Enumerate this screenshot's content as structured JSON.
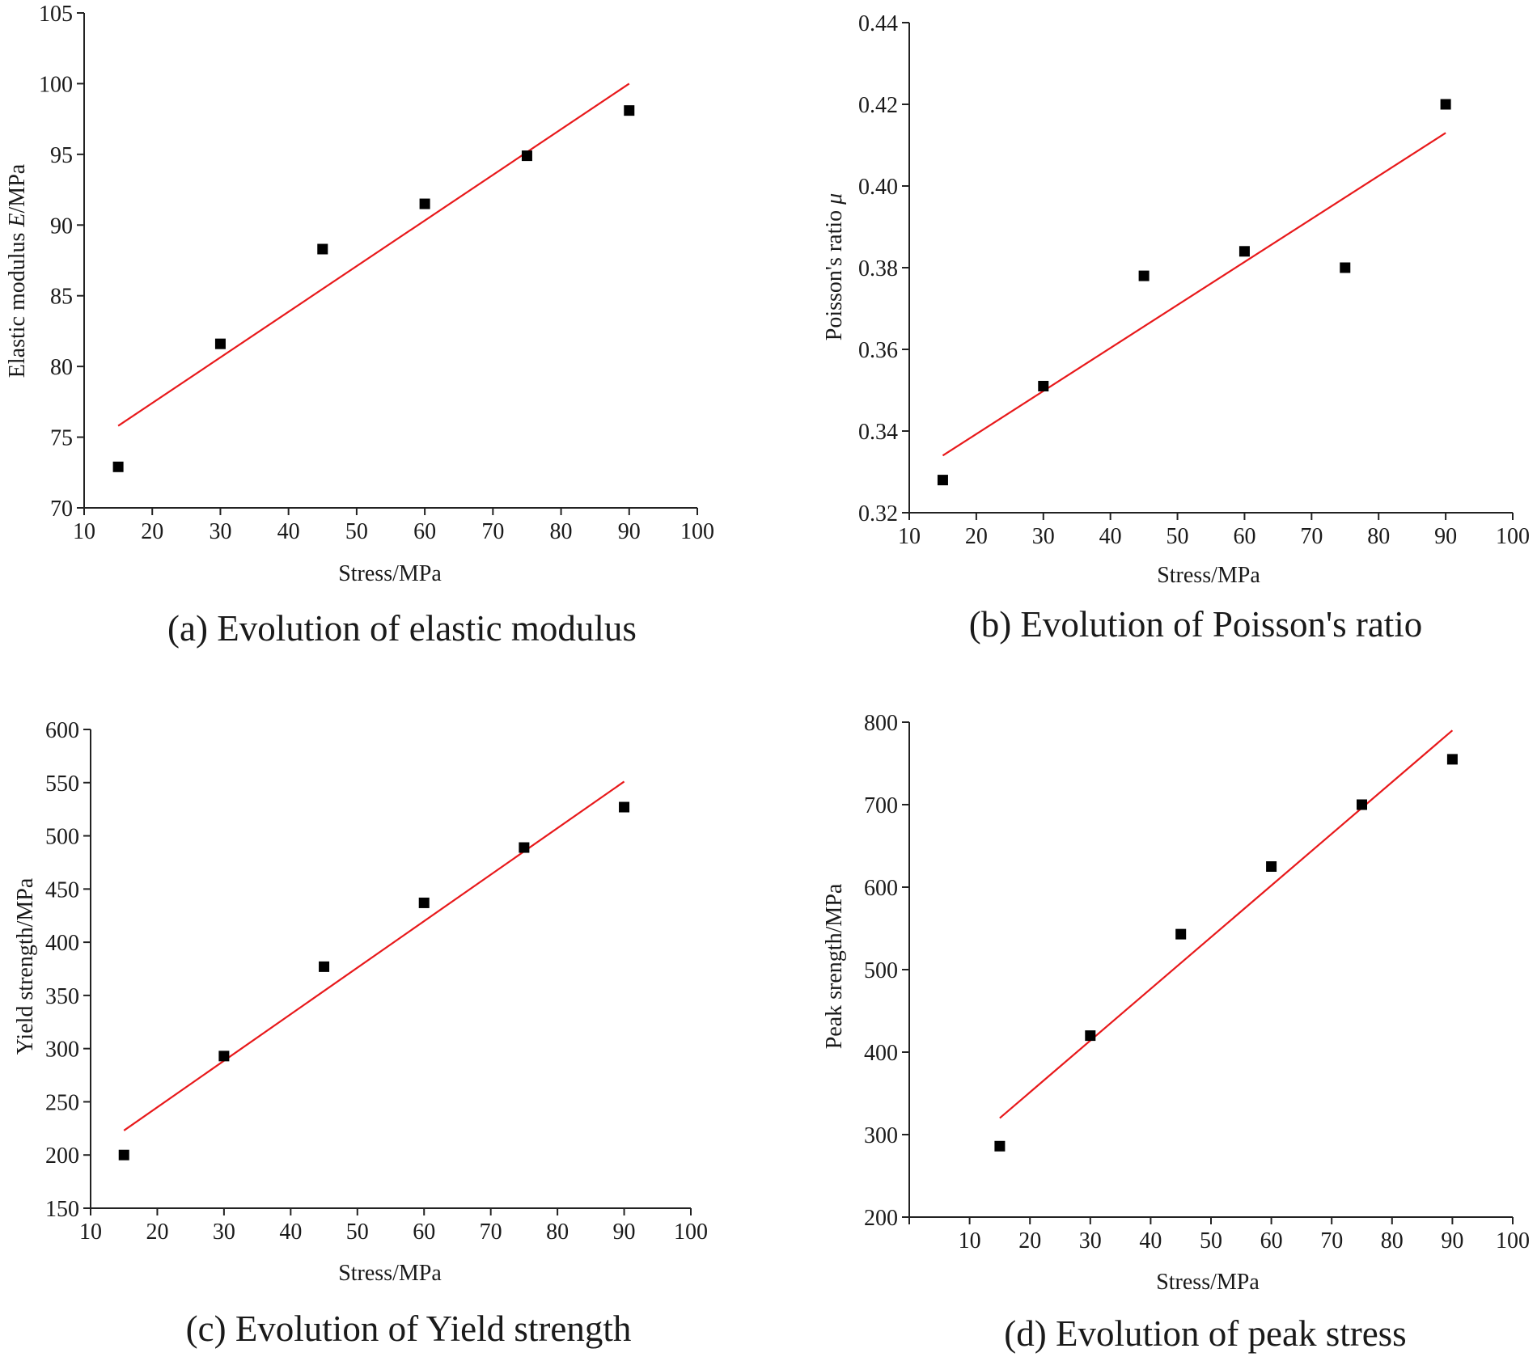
{
  "chart_data": [
    {
      "type": "scatter",
      "id": "a",
      "caption": "(a) Evolution of elastic modulus",
      "xlabel": "Stress/MPa",
      "ylabel": "Elastic modulus E/MPa",
      "ylabel_parts": [
        "Elastic modulus ",
        "E",
        "/MPa"
      ],
      "xlim": [
        10,
        100
      ],
      "ylim": [
        70,
        105
      ],
      "xticks": [
        "10",
        "20",
        "30",
        "40",
        "50",
        "60",
        "70",
        "80",
        "90",
        "100"
      ],
      "yticks": [
        "70",
        "75",
        "80",
        "85",
        "90",
        "95",
        "100",
        "105"
      ],
      "x": [
        15,
        30,
        45,
        60,
        75,
        90
      ],
      "y": [
        72.9,
        81.6,
        88.3,
        91.5,
        94.9,
        98.1
      ],
      "fit": {
        "x": [
          15,
          90
        ],
        "y": [
          75.8,
          100.0
        ]
      },
      "marker_color": "#000000",
      "fit_color": "#e8191b"
    },
    {
      "type": "scatter",
      "id": "b",
      "caption": "(b) Evolution of Poisson's ratio",
      "xlabel": "Stress/MPa",
      "ylabel": "Poisson's ratio μ",
      "ylabel_parts": [
        "Poisson's ratio ",
        "μ",
        ""
      ],
      "xlim": [
        10,
        100
      ],
      "ylim": [
        0.32,
        0.44
      ],
      "xticks": [
        "10",
        "20",
        "30",
        "40",
        "50",
        "60",
        "70",
        "80",
        "90",
        "100"
      ],
      "yticks": [
        "0.32",
        "0.34",
        "0.36",
        "0.38",
        "0.40",
        "0.42",
        "0.44"
      ],
      "x": [
        15,
        30,
        45,
        60,
        75,
        90
      ],
      "y": [
        0.328,
        0.351,
        0.378,
        0.384,
        0.38,
        0.42
      ],
      "fit": {
        "x": [
          15,
          90
        ],
        "y": [
          0.334,
          0.413
        ]
      },
      "marker_color": "#000000",
      "fit_color": "#e8191b"
    },
    {
      "type": "scatter",
      "id": "c",
      "caption": "(c) Evolution of Yield strength",
      "xlabel": "Stress/MPa",
      "ylabel": "Yield strength/MPa",
      "ylabel_parts": [
        "Yield strength/MPa",
        "",
        ""
      ],
      "xlim": [
        10,
        100
      ],
      "ylim": [
        150,
        600
      ],
      "xticks": [
        "10",
        "20",
        "30",
        "40",
        "50",
        "60",
        "70",
        "80",
        "90",
        "100"
      ],
      "yticks": [
        "150",
        "200",
        "250",
        "300",
        "350",
        "400",
        "450",
        "500",
        "550",
        "600"
      ],
      "x": [
        15,
        30,
        45,
        60,
        75,
        90
      ],
      "y": [
        200,
        293,
        377,
        437,
        489,
        527
      ],
      "fit": {
        "x": [
          15,
          90
        ],
        "y": [
          223,
          551
        ]
      },
      "marker_color": "#000000",
      "fit_color": "#e8191b"
    },
    {
      "type": "scatter",
      "id": "d",
      "caption": "(d) Evolution of peak stress",
      "xlabel": "Stress/MPa",
      "ylabel": "Peak srength/MPa",
      "ylabel_parts": [
        "Peak srength/MPa",
        "",
        ""
      ],
      "xlim": [
        0,
        100
      ],
      "ylim": [
        200,
        800
      ],
      "xticks": [
        "10",
        "20",
        "30",
        "40",
        "50",
        "60",
        "70",
        "80",
        "90",
        "100"
      ],
      "xtick_values": [
        10,
        20,
        30,
        40,
        50,
        60,
        70,
        80,
        90,
        100
      ],
      "yticks": [
        "200",
        "300",
        "400",
        "500",
        "600",
        "700",
        "800"
      ],
      "x": [
        15,
        30,
        45,
        60,
        75,
        90
      ],
      "y": [
        286,
        420,
        543,
        625,
        700,
        755
      ],
      "fit": {
        "x": [
          15,
          90
        ],
        "y": [
          320,
          790
        ]
      },
      "marker_color": "#000000",
      "fit_color": "#e8191b"
    }
  ]
}
